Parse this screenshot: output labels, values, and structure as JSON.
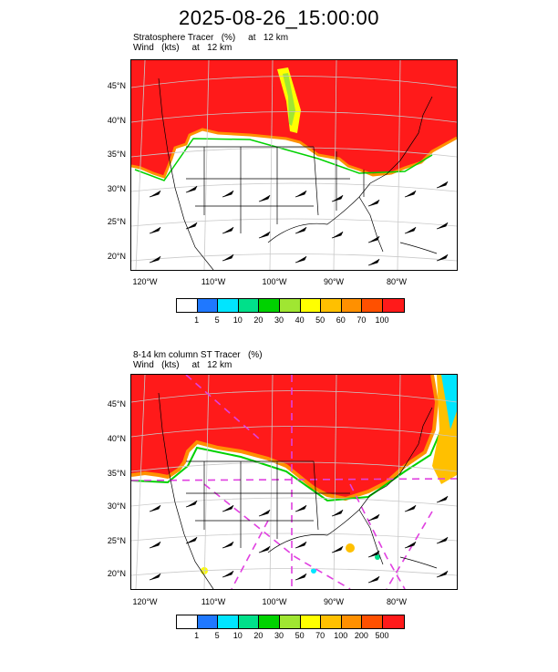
{
  "title": "2025-08-26_15:00:00",
  "panels": [
    {
      "id": "stratosphere-tracer",
      "title_line1": "Stratosphere Tracer   (%)     at   12 km",
      "title_line2": "Wind   (kts)     at   12 km",
      "lat_labels": [
        "45°N",
        "40°N",
        "35°N",
        "30°N",
        "25°N",
        "20°N"
      ],
      "lon_labels": [
        "120°W",
        "110°W",
        "100°W",
        "90°W",
        "80°W"
      ],
      "colorbar": {
        "colors": [
          "#ffffff",
          "#1f78ff",
          "#00e5ff",
          "#00e08a",
          "#00d200",
          "#a0e632",
          "#ffff00",
          "#ffc000",
          "#ff9000",
          "#ff5000",
          "#ff1a1a"
        ],
        "labels": [
          "1",
          "5",
          "10",
          "20",
          "30",
          "40",
          "50",
          "60",
          "70",
          "100"
        ]
      }
    },
    {
      "id": "column-st-tracer",
      "title_line1": "8-14 km column ST Tracer   (%)",
      "title_line2": "Wind   (kts)     at   12 km",
      "lat_labels": [
        "45°N",
        "40°N",
        "35°N",
        "30°N",
        "25°N",
        "20°N"
      ],
      "lon_labels": [
        "120°W",
        "110°W",
        "100°W",
        "90°W",
        "80°W"
      ],
      "colorbar": {
        "colors": [
          "#ffffff",
          "#1f78ff",
          "#00e5ff",
          "#00e08a",
          "#00d200",
          "#a0e632",
          "#ffff00",
          "#ffc000",
          "#ff9000",
          "#ff5000",
          "#ff1a1a"
        ],
        "labels": [
          "1",
          "5",
          "10",
          "20",
          "30",
          "50",
          "70",
          "100",
          "200",
          "500"
        ]
      }
    }
  ],
  "style": {
    "tracer_high": "#ff1a1a",
    "overlay_dash": "#e040e0",
    "coastline": "#000000",
    "graticule": "#c8c8c8"
  }
}
